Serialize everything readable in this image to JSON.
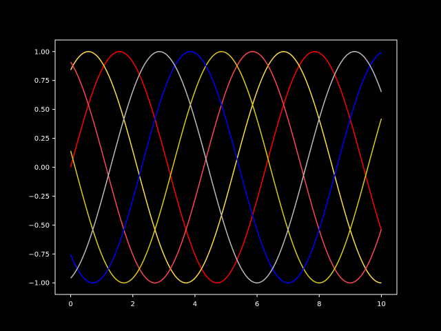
{
  "chart_data": {
    "type": "line",
    "title": "",
    "xlabel": "",
    "ylabel": "",
    "xlim": [
      -0.5,
      10.5
    ],
    "ylim": [
      -1.1,
      1.1
    ],
    "grid": false,
    "legend": "none",
    "background": "#000000",
    "axes_color": "#ffffff",
    "x_ticks": [
      0,
      2,
      4,
      6,
      8,
      10
    ],
    "x_tick_labels": [
      "0",
      "2",
      "4",
      "6",
      "8",
      "10"
    ],
    "y_ticks": [
      -1.0,
      -0.75,
      -0.5,
      -0.25,
      0.0,
      0.25,
      0.5,
      0.75,
      1.0
    ],
    "y_tick_labels": [
      "−1.00",
      "−0.75",
      "−0.50",
      "−0.25",
      "0.00",
      "0.25",
      "0.50",
      "0.75",
      "1.00"
    ],
    "x_sample_start": 0,
    "x_sample_end": 10,
    "x_sample_count": 201,
    "series": [
      {
        "function": "sin",
        "phase": 0.0,
        "color": "#ff0000"
      },
      {
        "function": "sin",
        "phase": 1.0,
        "color": "#ffdd44"
      },
      {
        "function": "sin",
        "phase": 2.0,
        "color": "#ff4455"
      },
      {
        "function": "sin",
        "phase": 3.0,
        "color": "#ddcc11"
      },
      {
        "function": "sin",
        "phase": 4.0,
        "color": "#0000ff"
      },
      {
        "function": "sin",
        "phase": 5.0,
        "color": "#bbbbbb"
      }
    ]
  }
}
